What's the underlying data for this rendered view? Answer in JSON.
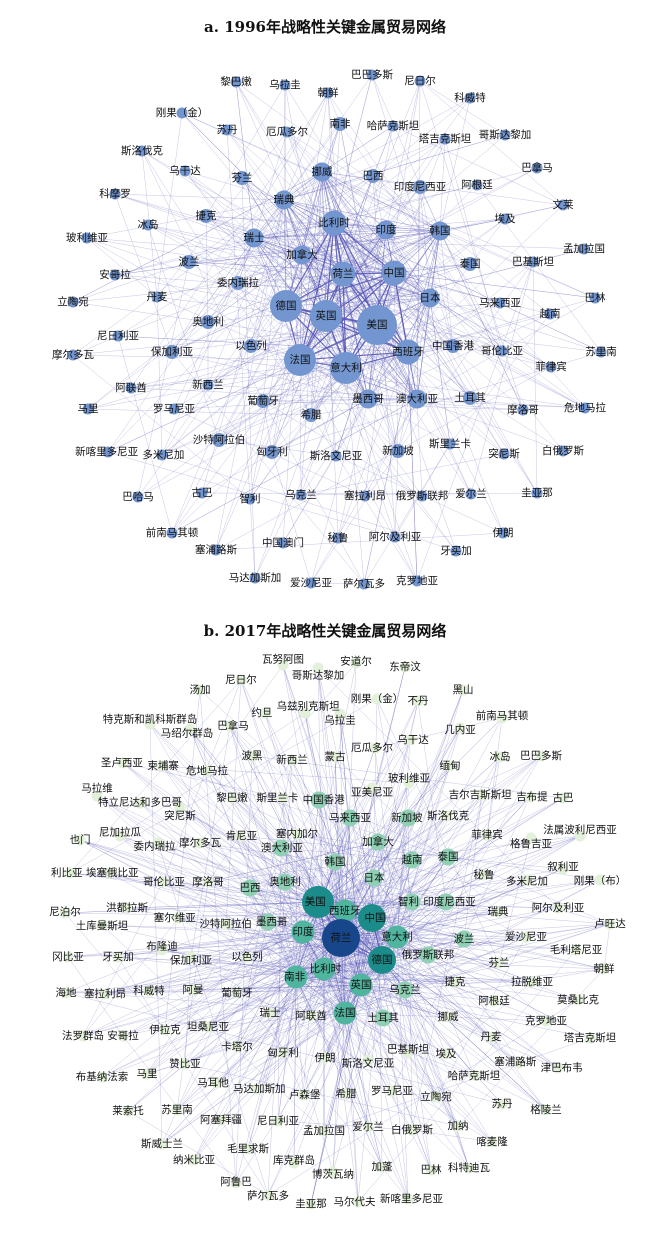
{
  "network_a": {
    "title": "a. 1996年战略性关键金属贸易网络",
    "node_color": "#7396d0",
    "edge_color": "#5a5ab8",
    "nodes": [
      {
        "label": "朝鲜",
        "tier": 1
      },
      {
        "label": "巴巴多斯",
        "tier": 1
      },
      {
        "label": "尼日尔",
        "tier": 1
      },
      {
        "label": "黎巴嫩",
        "tier": 1
      },
      {
        "label": "乌拉圭",
        "tier": 1
      },
      {
        "label": "科威特",
        "tier": 1
      },
      {
        "label": "刚果（金）",
        "tier": 1
      },
      {
        "label": "苏丹",
        "tier": 1
      },
      {
        "label": "厄瓜多尔",
        "tier": 1
      },
      {
        "label": "南非",
        "tier": 2
      },
      {
        "label": "哈萨克斯坦",
        "tier": 1
      },
      {
        "label": "塔吉克斯坦",
        "tier": 1
      },
      {
        "label": "哥斯达黎加",
        "tier": 1
      },
      {
        "label": "斯洛伐克",
        "tier": 1
      },
      {
        "label": "乌干达",
        "tier": 1
      },
      {
        "label": "芬兰",
        "tier": 2
      },
      {
        "label": "挪威",
        "tier": 3
      },
      {
        "label": "巴西",
        "tier": 2
      },
      {
        "label": "印度尼西亚",
        "tier": 2
      },
      {
        "label": "阿根廷",
        "tier": 1
      },
      {
        "label": "巴拿马",
        "tier": 1
      },
      {
        "label": "科摩罗",
        "tier": 1
      },
      {
        "label": "瑞典",
        "tier": 3
      },
      {
        "label": "文莱",
        "tier": 1
      },
      {
        "label": "捷克",
        "tier": 2
      },
      {
        "label": "比利时",
        "tier": 4
      },
      {
        "label": "印度",
        "tier": 3
      },
      {
        "label": "韩国",
        "tier": 3
      },
      {
        "label": "埃及",
        "tier": 1
      },
      {
        "label": "冰岛",
        "tier": 1
      },
      {
        "label": "瑞士",
        "tier": 3
      },
      {
        "label": "加拿大",
        "tier": 3
      },
      {
        "label": "玻利维亚",
        "tier": 1
      },
      {
        "label": "波兰",
        "tier": 2
      },
      {
        "label": "荷兰",
        "tier": 4
      },
      {
        "label": "中国",
        "tier": 4
      },
      {
        "label": "泰国",
        "tier": 2
      },
      {
        "label": "巴基斯坦",
        "tier": 1
      },
      {
        "label": "孟加拉国",
        "tier": 1
      },
      {
        "label": "安哥拉",
        "tier": 1
      },
      {
        "label": "委内瑞拉",
        "tier": 2
      },
      {
        "label": "日本",
        "tier": 3
      },
      {
        "label": "马来西亚",
        "tier": 1
      },
      {
        "label": "巴林",
        "tier": 1
      },
      {
        "label": "立陶宛",
        "tier": 1
      },
      {
        "label": "丹麦",
        "tier": 1
      },
      {
        "label": "德国",
        "tier": 5
      },
      {
        "label": "英国",
        "tier": 5
      },
      {
        "label": "美国",
        "tier": 6
      },
      {
        "label": "越南",
        "tier": 1
      },
      {
        "label": "奥地利",
        "tier": 2
      },
      {
        "label": "中国香港",
        "tier": 2
      },
      {
        "label": "以色列",
        "tier": 2
      },
      {
        "label": "西班牙",
        "tier": 4
      },
      {
        "label": "法国",
        "tier": 5
      },
      {
        "label": "意大利",
        "tier": 5
      },
      {
        "label": "尼日利亚",
        "tier": 1
      },
      {
        "label": "保加利亚",
        "tier": 2
      },
      {
        "label": "摩尔多瓦",
        "tier": 1
      },
      {
        "label": "哥伦比亚",
        "tier": 1
      },
      {
        "label": "苏里南",
        "tier": 1
      },
      {
        "label": "菲律宾",
        "tier": 1
      },
      {
        "label": "新西兰",
        "tier": 1
      },
      {
        "label": "阿联酋",
        "tier": 1
      },
      {
        "label": "葡萄牙",
        "tier": 2
      },
      {
        "label": "马里",
        "tier": 1
      },
      {
        "label": "罗马尼亚",
        "tier": 1
      },
      {
        "label": "希腊",
        "tier": 2
      },
      {
        "label": "墨西哥",
        "tier": 3
      },
      {
        "label": "澳大利亚",
        "tier": 3
      },
      {
        "label": "土耳其",
        "tier": 2
      },
      {
        "label": "摩洛哥",
        "tier": 1
      },
      {
        "label": "危地马拉",
        "tier": 1
      },
      {
        "label": "沙特阿拉伯",
        "tier": 2
      },
      {
        "label": "斯洛文尼亚",
        "tier": 1
      },
      {
        "label": "新加坡",
        "tier": 2
      },
      {
        "label": "斯里兰卡",
        "tier": 1
      },
      {
        "label": "突尼斯",
        "tier": 1
      },
      {
        "label": "白俄罗斯",
        "tier": 1
      },
      {
        "label": "新喀里多尼亚",
        "tier": 1
      },
      {
        "label": "多米尼加",
        "tier": 1
      },
      {
        "label": "匈牙利",
        "tier": 2
      },
      {
        "label": "巴哈马",
        "tier": 1
      },
      {
        "label": "古巴",
        "tier": 1
      },
      {
        "label": "智利",
        "tier": 1
      },
      {
        "label": "乌克兰",
        "tier": 1
      },
      {
        "label": "塞拉利昂",
        "tier": 1
      },
      {
        "label": "俄罗斯联邦",
        "tier": 1
      },
      {
        "label": "爱尔兰",
        "tier": 1
      },
      {
        "label": "圭亚那",
        "tier": 1
      },
      {
        "label": "前南马其顿",
        "tier": 1
      },
      {
        "label": "秘鲁",
        "tier": 1
      },
      {
        "label": "阿尔及利亚",
        "tier": 1
      },
      {
        "label": "伊朗",
        "tier": 1
      },
      {
        "label": "中国澳门",
        "tier": 1
      },
      {
        "label": "牙买加",
        "tier": 1
      },
      {
        "label": "塞浦路斯",
        "tier": 1
      },
      {
        "label": "马达加斯加",
        "tier": 1
      },
      {
        "label": "爱沙尼亚",
        "tier": 1
      },
      {
        "label": "萨尔瓦多",
        "tier": 1
      },
      {
        "label": "克罗地亚",
        "tier": 1
      }
    ]
  },
  "network_b": {
    "title": "b. 2017年战略性关键金属贸易网络",
    "tier_colors": {
      "1": "#e4f1da",
      "2": "#8fd0b4",
      "3": "#4fb59f",
      "4": "#1b8c89",
      "6": "#17468a"
    },
    "edge_color": "#5a5ab8",
    "nodes": [
      {
        "label": "瓦努阿图",
        "tier": 1
      },
      {
        "label": "哥斯达黎加",
        "tier": 1
      },
      {
        "label": "安道尔",
        "tier": 1
      },
      {
        "label": "东帝汶",
        "tier": 1
      },
      {
        "label": "尼日尔",
        "tier": 1
      },
      {
        "label": "汤加",
        "tier": 1
      },
      {
        "label": "刚果（金）",
        "tier": 1
      },
      {
        "label": "不丹",
        "tier": 1
      },
      {
        "label": "黑山",
        "tier": 1
      },
      {
        "label": "约旦",
        "tier": 1
      },
      {
        "label": "乌兹别克斯坦",
        "tier": 1
      },
      {
        "label": "乌拉圭",
        "tier": 1
      },
      {
        "label": "特克斯和凯科斯群岛",
        "tier": 1
      },
      {
        "label": "马绍尔群岛",
        "tier": 1
      },
      {
        "label": "巴拿马",
        "tier": 1
      },
      {
        "label": "前南马其顿",
        "tier": 1
      },
      {
        "label": "几内亚",
        "tier": 1
      },
      {
        "label": "乌干达",
        "tier": 1
      },
      {
        "label": "厄瓜多尔",
        "tier": 1
      },
      {
        "label": "波黑",
        "tier": 1
      },
      {
        "label": "新西兰",
        "tier": 1
      },
      {
        "label": "蒙古",
        "tier": 1
      },
      {
        "label": "圣卢西亚",
        "tier": 1
      },
      {
        "label": "柬埔寨",
        "tier": 1
      },
      {
        "label": "危地马拉",
        "tier": 1
      },
      {
        "label": "冰岛",
        "tier": 1
      },
      {
        "label": "巴巴多斯",
        "tier": 1
      },
      {
        "label": "缅甸",
        "tier": 1
      },
      {
        "label": "亚美尼亚",
        "tier": 1
      },
      {
        "label": "玻利维亚",
        "tier": 1
      },
      {
        "label": "黎巴嫩",
        "tier": 1
      },
      {
        "label": "斯里兰卡",
        "tier": 1
      },
      {
        "label": "中国香港",
        "tier": 2
      },
      {
        "label": "马拉维",
        "tier": 1
      },
      {
        "label": "特立尼达和多巴哥",
        "tier": 1
      },
      {
        "label": "突尼斯",
        "tier": 1
      },
      {
        "label": "吉尔吉斯斯坦",
        "tier": 1
      },
      {
        "label": "吉布提",
        "tier": 1
      },
      {
        "label": "古巴",
        "tier": 1
      },
      {
        "label": "马来西亚",
        "tier": 2
      },
      {
        "label": "斯洛伐克",
        "tier": 1
      },
      {
        "label": "新加坡",
        "tier": 2
      },
      {
        "label": "也门",
        "tier": 1
      },
      {
        "label": "尼加拉瓜",
        "tier": 1
      },
      {
        "label": "委内瑞拉",
        "tier": 1
      },
      {
        "label": "摩尔多瓦",
        "tier": 1
      },
      {
        "label": "肯尼亚",
        "tier": 1
      },
      {
        "label": "塞内加尔",
        "tier": 1
      },
      {
        "label": "澳大利亚",
        "tier": 2
      },
      {
        "label": "加拿大",
        "tier": 2
      },
      {
        "label": "菲律宾",
        "tier": 1
      },
      {
        "label": "格鲁吉亚",
        "tier": 1
      },
      {
        "label": "法属波利尼西亚",
        "tier": 1
      },
      {
        "label": "利比亚",
        "tier": 1
      },
      {
        "label": "埃塞俄比亚",
        "tier": 1
      },
      {
        "label": "哥伦比亚",
        "tier": 1
      },
      {
        "label": "摩洛哥",
        "tier": 1
      },
      {
        "label": "巴西",
        "tier": 2
      },
      {
        "label": "奥地利",
        "tier": 2
      },
      {
        "label": "韩国",
        "tier": 2
      },
      {
        "label": "越南",
        "tier": 2
      },
      {
        "label": "泰国",
        "tier": 2
      },
      {
        "label": "日本",
        "tier": 2
      },
      {
        "label": "秘鲁",
        "tier": 1
      },
      {
        "label": "叙利亚",
        "tier": 1
      },
      {
        "label": "多米尼加",
        "tier": 1
      },
      {
        "label": "刚果（布）",
        "tier": 1
      },
      {
        "label": "尼泊尔",
        "tier": 1
      },
      {
        "label": "洪都拉斯",
        "tier": 1
      },
      {
        "label": "土库曼斯坦",
        "tier": 1
      },
      {
        "label": "塞尔维亚",
        "tier": 1
      },
      {
        "label": "沙特阿拉伯",
        "tier": 1
      },
      {
        "label": "墨西哥",
        "tier": 2
      },
      {
        "label": "美国",
        "tier": 5
      },
      {
        "label": "西班牙",
        "tier": 3
      },
      {
        "label": "中国",
        "tier": 4
      },
      {
        "label": "智利",
        "tier": 2
      },
      {
        "label": "印度尼西亚",
        "tier": 2
      },
      {
        "label": "瑞典",
        "tier": 1
      },
      {
        "label": "阿尔及利亚",
        "tier": 1
      },
      {
        "label": "卢旺达",
        "tier": 1
      },
      {
        "label": "印度",
        "tier": 3
      },
      {
        "label": "意大利",
        "tier": 3
      },
      {
        "label": "波兰",
        "tier": 2
      },
      {
        "label": "爱沙尼亚",
        "tier": 1
      },
      {
        "label": "冈比亚",
        "tier": 1
      },
      {
        "label": "牙买加",
        "tier": 1
      },
      {
        "label": "布隆迪",
        "tier": 1
      },
      {
        "label": "保加利亚",
        "tier": 1
      },
      {
        "label": "以色列",
        "tier": 1
      },
      {
        "label": "毛利塔尼亚",
        "tier": 1
      },
      {
        "label": "朝鲜",
        "tier": 1
      },
      {
        "label": "俄罗斯联邦",
        "tier": 2
      },
      {
        "label": "德国",
        "tier": 4
      },
      {
        "label": "比利时",
        "tier": 3
      },
      {
        "label": "南非",
        "tier": 3
      },
      {
        "label": "芬兰",
        "tier": 1
      },
      {
        "label": "英国",
        "tier": 3
      },
      {
        "label": "乌克兰",
        "tier": 2
      },
      {
        "label": "捷克",
        "tier": 1
      },
      {
        "label": "拉脱维亚",
        "tier": 1
      },
      {
        "label": "海地",
        "tier": 1
      },
      {
        "label": "塞拉利昂",
        "tier": 1
      },
      {
        "label": "科威特",
        "tier": 1
      },
      {
        "label": "阿曼",
        "tier": 1
      },
      {
        "label": "葡萄牙",
        "tier": 1
      },
      {
        "label": "瑞士",
        "tier": 1
      },
      {
        "label": "阿联酋",
        "tier": 1
      },
      {
        "label": "法国",
        "tier": 3
      },
      {
        "label": "土耳其",
        "tier": 2
      },
      {
        "label": "挪威",
        "tier": 1
      },
      {
        "label": "阿根廷",
        "tier": 1
      },
      {
        "label": "莫桑比克",
        "tier": 1
      },
      {
        "label": "克罗地亚",
        "tier": 1
      },
      {
        "label": "伊拉克",
        "tier": 1
      },
      {
        "label": "坦桑尼亚",
        "tier": 1
      },
      {
        "label": "法罗群岛",
        "tier": 1
      },
      {
        "label": "安哥拉",
        "tier": 1
      },
      {
        "label": "丹麦",
        "tier": 1
      },
      {
        "label": "塔吉克斯坦",
        "tier": 1
      },
      {
        "label": "卡塔尔",
        "tier": 1
      },
      {
        "label": "匈牙利",
        "tier": 1
      },
      {
        "label": "伊朗",
        "tier": 1
      },
      {
        "label": "斯洛文尼亚",
        "tier": 1
      },
      {
        "label": "巴基斯坦",
        "tier": 1
      },
      {
        "label": "埃及",
        "tier": 1
      },
      {
        "label": "塞浦路斯",
        "tier": 1
      },
      {
        "label": "津巴布韦",
        "tier": 1
      },
      {
        "label": "赞比亚",
        "tier": 1
      },
      {
        "label": "哈萨克斯坦",
        "tier": 1
      },
      {
        "label": "布基纳法索",
        "tier": 1
      },
      {
        "label": "马里",
        "tier": 1
      },
      {
        "label": "马耳他",
        "tier": 1
      },
      {
        "label": "马达加斯加",
        "tier": 1
      },
      {
        "label": "卢森堡",
        "tier": 1
      },
      {
        "label": "希腊",
        "tier": 1
      },
      {
        "label": "罗马尼亚",
        "tier": 1
      },
      {
        "label": "立陶宛",
        "tier": 1
      },
      {
        "label": "苏丹",
        "tier": 1
      },
      {
        "label": "格陵兰",
        "tier": 1
      },
      {
        "label": "莱索托",
        "tier": 1
      },
      {
        "label": "苏里南",
        "tier": 1
      },
      {
        "label": "阿塞拜疆",
        "tier": 1
      },
      {
        "label": "尼日利亚",
        "tier": 1
      },
      {
        "label": "孟加拉国",
        "tier": 1
      },
      {
        "label": "爱尔兰",
        "tier": 1
      },
      {
        "label": "白俄罗斯",
        "tier": 1
      },
      {
        "label": "加纳",
        "tier": 1
      },
      {
        "label": "喀麦隆",
        "tier": 1
      },
      {
        "label": "斯威士兰",
        "tier": 1
      },
      {
        "label": "毛里求斯",
        "tier": 1
      },
      {
        "label": "纳米比亚",
        "tier": 1
      },
      {
        "label": "库克群岛",
        "tier": 1
      },
      {
        "label": "博茨瓦纳",
        "tier": 1
      },
      {
        "label": "加蓬",
        "tier": 1
      },
      {
        "label": "巴林",
        "tier": 1
      },
      {
        "label": "科特迪瓦",
        "tier": 1
      },
      {
        "label": "阿鲁巴",
        "tier": 1
      },
      {
        "label": "萨尔瓦多",
        "tier": 1
      },
      {
        "label": "圭亚那",
        "tier": 1
      },
      {
        "label": "马尔代夫",
        "tier": 1
      },
      {
        "label": "新喀里多尼亚",
        "tier": 1
      },
      {
        "label": "荷兰",
        "tier": 6
      }
    ]
  }
}
